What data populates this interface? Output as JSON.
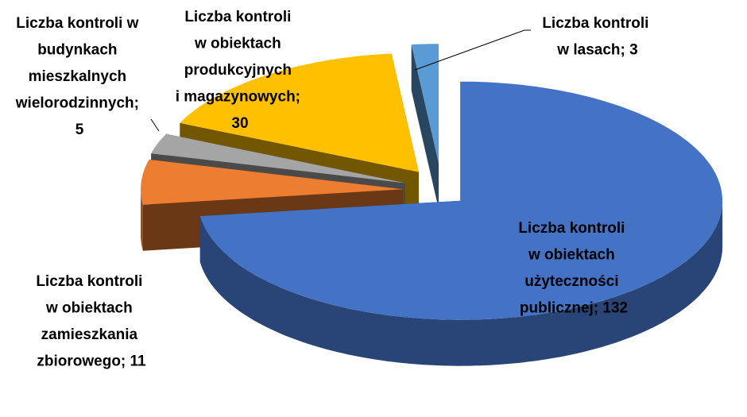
{
  "chart_data": {
    "type": "pie3d",
    "values": [
      132,
      11,
      5,
      30,
      3
    ],
    "value_labels": [
      "Liczba kontroli w obiektach użyteczności publicznej; 132",
      "Liczba kontroli w obiektach zamieszkania zbiorowego; 11",
      "Liczba kontroli w budynkach mieszkalnych wielorodzinnych; 5",
      "Liczba kontroli w obiektach produkcyjnych i magazynowych; 30",
      "Liczba kontroli w lasach; 3"
    ],
    "colors": [
      "#4472c4",
      "#ed7d31",
      "#a5a5a5",
      "#ffc000",
      "#5b9bd5"
    ]
  }
}
